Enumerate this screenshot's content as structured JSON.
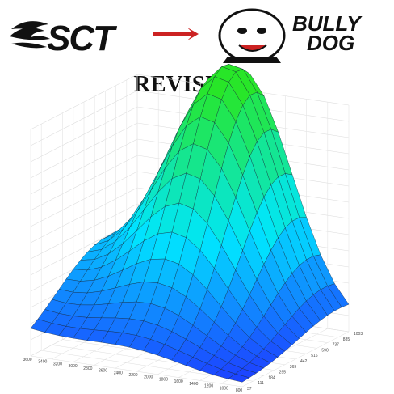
{
  "header": {
    "left_logo": "SCT",
    "right_logo_line1": "BULLY",
    "right_logo_line2": "DOG"
  },
  "title": "REVISION",
  "axes": {
    "left_axis_labels": [
      "3600",
      "3400",
      "3200",
      "3000",
      "2800",
      "2600",
      "2400",
      "2200",
      "2000",
      "1800",
      "1600",
      "1400",
      "1200",
      "1000",
      "800"
    ],
    "right_axis_labels": [
      "37",
      "111",
      "184",
      "295",
      "369",
      "442",
      "516",
      "590",
      "737",
      "885",
      "1003"
    ]
  }
}
